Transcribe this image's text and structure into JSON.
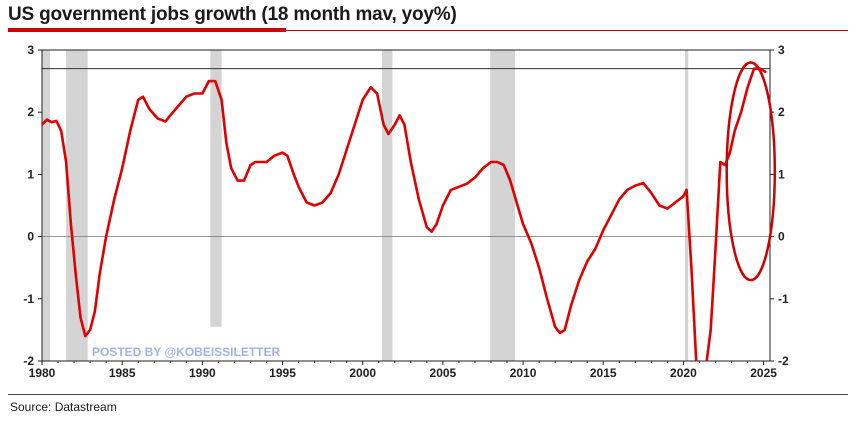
{
  "title": "US government jobs growth (18 month mav, yoy%)",
  "source": "Source: Datastream",
  "watermark": "POSTED BY @KOBEISSILETTER",
  "colors": {
    "accent": "#d10000",
    "series": "#e00000",
    "recession": "#d4d4d4",
    "watermark": "#9eb4e8"
  },
  "chart_data": {
    "type": "line",
    "xlim": [
      1980,
      2025.4
    ],
    "ylim": [
      -2,
      3
    ],
    "x_ticks": [
      1980,
      1985,
      1990,
      1995,
      2000,
      2005,
      2010,
      2015,
      2020,
      2025
    ],
    "x_tick_labels": [
      "1980",
      "1985",
      "1990",
      "1995",
      "2000",
      "2005",
      "2010",
      "2015",
      "2020",
      "2025"
    ],
    "y_ticks": [
      -2,
      -1,
      0,
      1,
      2,
      3
    ],
    "y_tick_labels": [
      "-2",
      "-1",
      "0",
      "1",
      "2",
      "3"
    ],
    "horizontal_lines": [
      0,
      2.7
    ],
    "recessions": [
      {
        "start": 1980.0,
        "end": 1980.5,
        "ymin": -2,
        "ymax": 3
      },
      {
        "start": 1981.5,
        "end": 1982.85,
        "ymin": -2,
        "ymax": 3
      },
      {
        "start": 1990.5,
        "end": 1991.2,
        "ymin": -1.45,
        "ymax": 3
      },
      {
        "start": 2001.2,
        "end": 2001.85,
        "ymin": -2,
        "ymax": 3
      },
      {
        "start": 2007.95,
        "end": 2009.5,
        "ymin": -2,
        "ymax": 3
      },
      {
        "start": 2020.1,
        "end": 2020.3,
        "ymin": -2,
        "ymax": 3
      }
    ],
    "highlight_ellipse": {
      "cx": 2024.2,
      "cy": 1.05,
      "rx": 1.5,
      "ry": 1.75
    },
    "series": [
      {
        "x": [
          1980.0,
          1980.3,
          1980.6,
          1980.9,
          1981.2,
          1981.5,
          1981.8,
          1982.1,
          1982.4,
          1982.7,
          1983.0,
          1983.3,
          1983.6,
          1984.0,
          1984.5,
          1985.0,
          1985.5,
          1986.0,
          1986.3,
          1986.7,
          1987.2,
          1987.7,
          1988.0,
          1988.5,
          1989.0,
          1989.5,
          1990.0,
          1990.4,
          1990.8,
          1991.2,
          1991.5,
          1991.8,
          1992.2,
          1992.6,
          1993.0,
          1993.3,
          1993.6,
          1994.0,
          1994.5,
          1995.0,
          1995.3,
          1995.7,
          1996.0,
          1996.5,
          1997.0,
          1997.5,
          1998.0,
          1998.5,
          1999.0,
          1999.5,
          2000.0,
          2000.5,
          2000.9,
          2001.3,
          2001.6,
          2002.0,
          2002.3,
          2002.6,
          2003.0,
          2003.5,
          2004.0,
          2004.3,
          2004.6,
          2005.0,
          2005.5,
          2006.0,
          2006.5,
          2007.0,
          2007.5,
          2008.0,
          2008.4,
          2008.8,
          2009.2,
          2009.6,
          2010.0,
          2010.5,
          2011.0,
          2011.5,
          2012.0,
          2012.3,
          2012.6,
          2013.0,
          2013.5,
          2014.0,
          2014.5,
          2015.0,
          2015.5,
          2016.0,
          2016.5,
          2017.0,
          2017.5,
          2018.0,
          2018.5,
          2019.0,
          2019.5,
          2020.0,
          2020.2,
          2020.5,
          2020.8,
          2021.1,
          2021.4,
          2021.7,
          2022.0,
          2022.3,
          2022.6,
          2022.9,
          2023.2,
          2023.6,
          2024.0,
          2024.4,
          2024.8,
          2025.1
        ],
        "y": [
          1.8,
          1.88,
          1.84,
          1.86,
          1.7,
          1.2,
          0.2,
          -0.6,
          -1.3,
          -1.6,
          -1.5,
          -1.2,
          -0.6,
          0.0,
          0.6,
          1.1,
          1.7,
          2.2,
          2.25,
          2.05,
          1.9,
          1.85,
          1.95,
          2.1,
          2.25,
          2.3,
          2.3,
          2.5,
          2.5,
          2.2,
          1.5,
          1.1,
          0.9,
          0.9,
          1.15,
          1.2,
          1.2,
          1.2,
          1.3,
          1.35,
          1.3,
          1.0,
          0.8,
          0.55,
          0.5,
          0.55,
          0.7,
          1.0,
          1.4,
          1.8,
          2.2,
          2.4,
          2.3,
          1.8,
          1.65,
          1.8,
          1.95,
          1.8,
          1.2,
          0.6,
          0.15,
          0.08,
          0.2,
          0.5,
          0.75,
          0.8,
          0.85,
          0.95,
          1.1,
          1.2,
          1.2,
          1.15,
          0.9,
          0.55,
          0.2,
          -0.1,
          -0.5,
          -1.0,
          -1.45,
          -1.55,
          -1.5,
          -1.1,
          -0.7,
          -0.4,
          -0.2,
          0.1,
          0.35,
          0.6,
          0.75,
          0.82,
          0.86,
          0.7,
          0.5,
          0.45,
          0.55,
          0.65,
          0.75,
          -0.5,
          -2.0,
          -2.1,
          -2.1,
          -1.5,
          -0.2,
          1.2,
          1.15,
          1.35,
          1.7,
          2.0,
          2.4,
          2.7,
          2.7,
          2.65
        ]
      }
    ]
  }
}
